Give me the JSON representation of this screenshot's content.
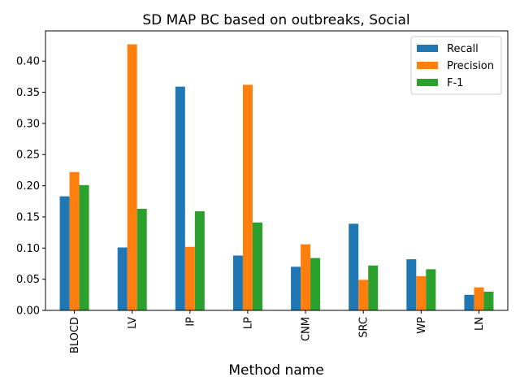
{
  "chart_data": {
    "type": "bar",
    "title": "SD MAP BC based on outbreaks, Social",
    "xlabel": "Method name",
    "ylabel": "",
    "categories": [
      "BLOCD",
      "LV",
      "IP",
      "LP",
      "CNM",
      "SRC",
      "WP",
      "LN"
    ],
    "series": [
      {
        "name": "Recall",
        "color": "#1f77b4",
        "values": [
          0.183,
          0.101,
          0.359,
          0.088,
          0.07,
          0.139,
          0.082,
          0.025
        ]
      },
      {
        "name": "Precision",
        "color": "#ff7f0e",
        "values": [
          0.222,
          0.427,
          0.102,
          0.362,
          0.106,
          0.049,
          0.055,
          0.037
        ]
      },
      {
        "name": "F-1",
        "color": "#2ca02c",
        "values": [
          0.201,
          0.163,
          0.159,
          0.141,
          0.084,
          0.072,
          0.066,
          0.03
        ]
      }
    ],
    "ylim": [
      0,
      0.4485
    ],
    "yticks": [
      "0.00",
      "0.05",
      "0.10",
      "0.15",
      "0.20",
      "0.25",
      "0.30",
      "0.35",
      "0.40"
    ],
    "grid": false,
    "legend_position": "top-right"
  }
}
